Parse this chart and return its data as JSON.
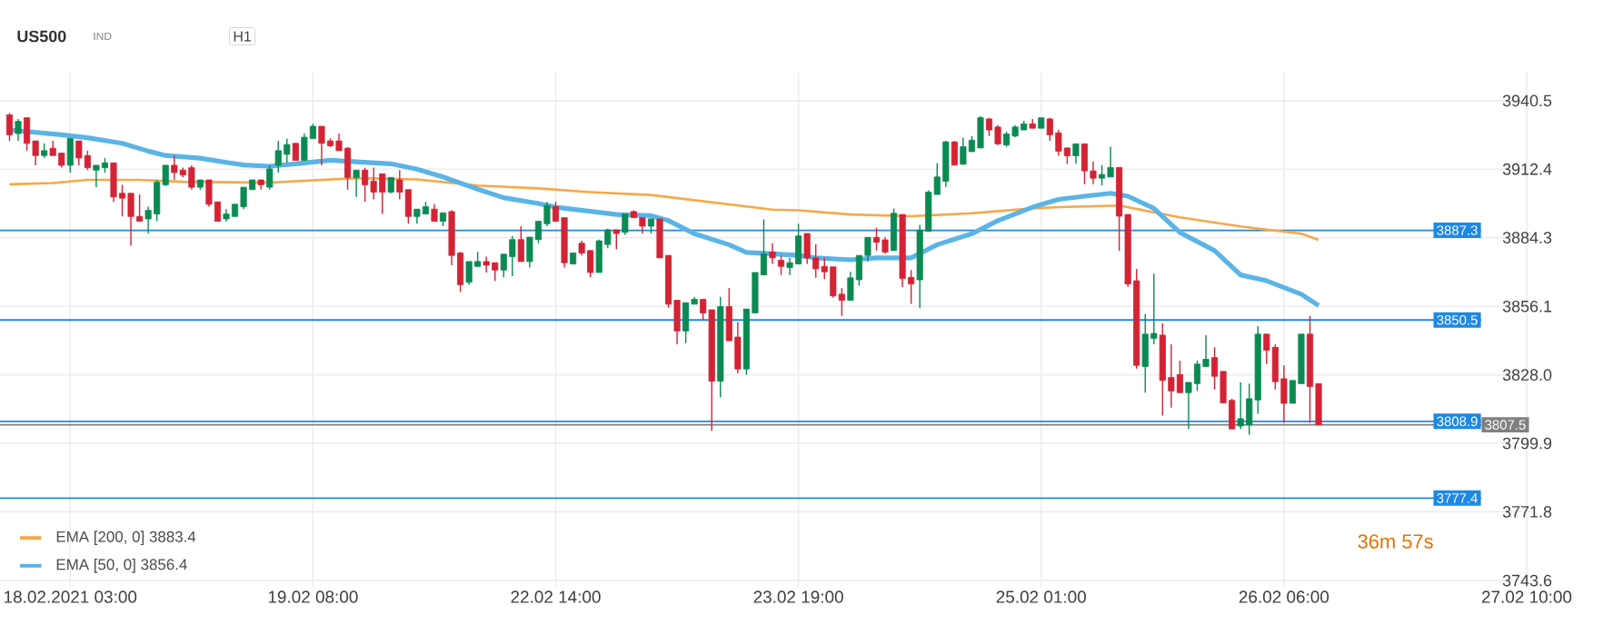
{
  "chart_data": {
    "type": "candlestick",
    "title": "US500",
    "subtitle": "IND",
    "annotations": [
      "H1",
      "36m 57s"
    ],
    "ohlc": [
      [
        3934.7,
        3935.4,
        3924,
        3926.5
      ],
      [
        3927,
        3933,
        3924,
        3932
      ],
      [
        3933.5,
        3933.5,
        3920,
        3923
      ],
      [
        3924,
        3924,
        3914,
        3918
      ],
      [
        3918,
        3923,
        3917,
        3920
      ],
      [
        3921,
        3924,
        3918,
        3918
      ],
      [
        3919,
        3919,
        3913,
        3914
      ],
      [
        3914,
        3925,
        3911,
        3925
      ],
      [
        3924,
        3924,
        3914,
        3917
      ],
      [
        3918,
        3920,
        3912,
        3913
      ],
      [
        3912,
        3914,
        3905,
        3914
      ],
      [
        3913,
        3917,
        3911,
        3915
      ],
      [
        3915,
        3915,
        3899,
        3901
      ],
      [
        3902.5,
        3906,
        3893,
        3900.5
      ],
      [
        3902.5,
        3902.5,
        3881,
        3893
      ],
      [
        3893,
        3902,
        3891,
        3891
      ],
      [
        3892,
        3897,
        3886,
        3895.5
      ],
      [
        3894,
        3908,
        3891,
        3907
      ],
      [
        3906,
        3914,
        3905.5,
        3914
      ],
      [
        3914,
        3918,
        3908,
        3911
      ],
      [
        3912,
        3913,
        3909,
        3910
      ],
      [
        3913,
        3914,
        3904,
        3905
      ],
      [
        3905,
        3908,
        3904,
        3908
      ],
      [
        3908,
        3908,
        3897,
        3898
      ],
      [
        3899,
        3899,
        3891,
        3891
      ],
      [
        3892,
        3896,
        3891,
        3894
      ],
      [
        3893,
        3898,
        3893,
        3898
      ],
      [
        3897,
        3905,
        3896,
        3905
      ],
      [
        3904,
        3908,
        3904,
        3908
      ],
      [
        3908,
        3908,
        3904,
        3906
      ],
      [
        3905,
        3914,
        3904,
        3912.5
      ],
      [
        3914,
        3924,
        3911,
        3920
      ],
      [
        3918.5,
        3925,
        3915,
        3922.5
      ],
      [
        3923,
        3923,
        3916,
        3916
      ],
      [
        3916,
        3927,
        3916,
        3925.5
      ],
      [
        3925,
        3931,
        3925,
        3930
      ],
      [
        3930,
        3930,
        3914,
        3923
      ],
      [
        3924,
        3925,
        3921.5,
        3922
      ],
      [
        3924,
        3927,
        3920,
        3920
      ],
      [
        3921,
        3921.5,
        3904,
        3909
      ],
      [
        3909,
        3912,
        3901,
        3912
      ],
      [
        3912,
        3913,
        3899,
        3906
      ],
      [
        3907.5,
        3913,
        3900,
        3903
      ],
      [
        3910.5,
        3910.5,
        3894,
        3903
      ],
      [
        3903,
        3909,
        3902.5,
        3909
      ],
      [
        3908,
        3912,
        3900,
        3903
      ],
      [
        3904,
        3904,
        3890,
        3893
      ],
      [
        3893,
        3896,
        3890,
        3896
      ],
      [
        3894,
        3899,
        3894,
        3897
      ],
      [
        3896,
        3898,
        3891,
        3891
      ],
      [
        3891,
        3894.5,
        3889,
        3894.5
      ],
      [
        3895,
        3895.5,
        3873,
        3877
      ],
      [
        3878,
        3878.5,
        3862,
        3865
      ],
      [
        3866,
        3874.5,
        3865,
        3874.5
      ],
      [
        3872.5,
        3878.5,
        3872.5,
        3874.5
      ],
      [
        3874.5,
        3876.5,
        3870,
        3873
      ],
      [
        3874,
        3874,
        3866.5,
        3871
      ],
      [
        3871,
        3877.5,
        3868,
        3877.5
      ],
      [
        3876.5,
        3885,
        3868.5,
        3883.5
      ],
      [
        3883.5,
        3889,
        3874.5,
        3874.5
      ],
      [
        3874.5,
        3884.5,
        3872,
        3884.5
      ],
      [
        3883.5,
        3891,
        3882,
        3891
      ],
      [
        3890,
        3899,
        3889,
        3897.5
      ],
      [
        3897,
        3899,
        3891,
        3891
      ],
      [
        3892.5,
        3892.5,
        3872,
        3874
      ],
      [
        3873.5,
        3878,
        3873.5,
        3878
      ],
      [
        3882,
        3883,
        3877,
        3878
      ],
      [
        3879,
        3879,
        3868,
        3870
      ],
      [
        3870,
        3883.5,
        3870,
        3883
      ],
      [
        3881.5,
        3888,
        3880,
        3887.5
      ],
      [
        3887.5,
        3887.5,
        3879.5,
        3886
      ],
      [
        3886.5,
        3894,
        3885.5,
        3894
      ],
      [
        3895,
        3895.5,
        3892.5,
        3892.5
      ],
      [
        3892.5,
        3892.5,
        3886,
        3889
      ],
      [
        3889,
        3892,
        3886,
        3892
      ],
      [
        3892,
        3892,
        3876,
        3876
      ],
      [
        3877,
        3877,
        3855.5,
        3857
      ],
      [
        3858.6,
        3858.6,
        3840.5,
        3846
      ],
      [
        3846,
        3857.6,
        3841,
        3857.6
      ],
      [
        3857,
        3860,
        3857,
        3859
      ],
      [
        3859,
        3859,
        3850.5,
        3853.4
      ],
      [
        3854.7,
        3854.7,
        3805,
        3825.4
      ],
      [
        3825.4,
        3860,
        3818.7,
        3856
      ],
      [
        3856,
        3863.6,
        3842,
        3842
      ],
      [
        3843.5,
        3849.7,
        3828.6,
        3830.4
      ],
      [
        3830.4,
        3855,
        3828,
        3855
      ],
      [
        3853.4,
        3870,
        3853.4,
        3870
      ],
      [
        3869,
        3891.8,
        3869,
        3877.7
      ],
      [
        3878.4,
        3882,
        3873.5,
        3876
      ],
      [
        3875,
        3877,
        3869,
        3872.5
      ],
      [
        3872,
        3876,
        3869,
        3874
      ],
      [
        3873.5,
        3890,
        3873.5,
        3885
      ],
      [
        3886,
        3886,
        3873.5,
        3876
      ],
      [
        3876,
        3881.5,
        3867.8,
        3871.5
      ],
      [
        3872.5,
        3876,
        3867.3,
        3870.3
      ],
      [
        3872.3,
        3872.3,
        3859.6,
        3860.4
      ],
      [
        3861.1,
        3863.6,
        3852.2,
        3858.6
      ],
      [
        3858.6,
        3870.3,
        3858.6,
        3867.8
      ],
      [
        3867,
        3877,
        3864.6,
        3877
      ],
      [
        3877,
        3884.4,
        3874.5,
        3884.4
      ],
      [
        3884.4,
        3888.4,
        3879,
        3882.4
      ],
      [
        3883.4,
        3884.4,
        3877.7,
        3878.4
      ],
      [
        3879,
        3896.3,
        3879,
        3894.3
      ],
      [
        3893.8,
        3893.8,
        3864,
        3867.5
      ],
      [
        3868,
        3871,
        3857.1,
        3865.3
      ],
      [
        3867,
        3889.6,
        3855.4,
        3887.4
      ],
      [
        3886.9,
        3903.7,
        3886.9,
        3903
      ],
      [
        3902,
        3914.9,
        3902,
        3909.2
      ],
      [
        3907.4,
        3924,
        3905,
        3923.6
      ],
      [
        3923.6,
        3924,
        3914.1,
        3914.1
      ],
      [
        3914.4,
        3925.3,
        3914.4,
        3921.6
      ],
      [
        3919.6,
        3926,
        3919.6,
        3924.3
      ],
      [
        3921.1,
        3934.2,
        3921.1,
        3933.5
      ],
      [
        3933,
        3933.5,
        3926,
        3928.5
      ],
      [
        3929.7,
        3930.5,
        3922.3,
        3922.8
      ],
      [
        3922.3,
        3927.8,
        3921.6,
        3926.8
      ],
      [
        3926,
        3930.5,
        3925.5,
        3929.7
      ],
      [
        3928.5,
        3932.2,
        3928.5,
        3931
      ],
      [
        3931,
        3933,
        3929.2,
        3929.2
      ],
      [
        3929.2,
        3933.5,
        3929.2,
        3933.5
      ],
      [
        3933,
        3933.5,
        3924,
        3926.5
      ],
      [
        3927.3,
        3928.5,
        3918,
        3919.8
      ],
      [
        3921.1,
        3921.1,
        3914.6,
        3917.9
      ],
      [
        3917.9,
        3922.8,
        3914.6,
        3922.8
      ],
      [
        3922.8,
        3922.8,
        3906.2,
        3911.7
      ],
      [
        3911.7,
        3915.6,
        3906.2,
        3908.7
      ],
      [
        3908.7,
        3914.1,
        3905.7,
        3910.2
      ],
      [
        3909.2,
        3921.6,
        3909.2,
        3913.1
      ],
      [
        3913.1,
        3913.1,
        3878.9,
        3893.1
      ],
      [
        3893.8,
        3893.8,
        3864.1,
        3865.3
      ],
      [
        3866.6,
        3871.5,
        3830.6,
        3831.9
      ],
      [
        3831.4,
        3852.9,
        3820.7,
        3844.7
      ],
      [
        3843,
        3869.5,
        3840.5,
        3845
      ],
      [
        3844.3,
        3849.2,
        3811.3,
        3825.7
      ],
      [
        3826.9,
        3840.5,
        3814.5,
        3821.4
      ],
      [
        3828.1,
        3833.8,
        3820.7,
        3820.7
      ],
      [
        3820.7,
        3824.9,
        3805.8,
        3824.9
      ],
      [
        3824.4,
        3833.8,
        3821.4,
        3832.4
      ],
      [
        3831.4,
        3844.3,
        3831.4,
        3834.4
      ],
      [
        3835.1,
        3839.3,
        3822,
        3827.4
      ],
      [
        3829.4,
        3829.4,
        3816.5,
        3816.5
      ],
      [
        3817.5,
        3818.2,
        3805.8,
        3805.8
      ],
      [
        3807,
        3824.9,
        3805.8,
        3810
      ],
      [
        3807.5,
        3824.4,
        3803.4,
        3818.2
      ],
      [
        3817.7,
        3848,
        3812,
        3844.7
      ],
      [
        3844.7,
        3844.7,
        3832.4,
        3838.1
      ],
      [
        3839.3,
        3840.5,
        3822,
        3825.2
      ],
      [
        3826.4,
        3831.9,
        3808.3,
        3816.3
      ],
      [
        3816.3,
        3825.7,
        3816.3,
        3825.7
      ],
      [
        3824.4,
        3844.7,
        3824.4,
        3844.7
      ],
      [
        3844.7,
        3852.2,
        3808.3,
        3823.2
      ],
      [
        3824.4,
        3824.4,
        3807.5,
        3807.5
      ],
      null,
      null,
      null,
      null,
      null,
      null,
      null,
      null,
      null,
      null,
      null,
      null,
      null,
      null,
      null,
      null,
      null,
      null,
      null,
      null,
      null,
      null,
      null,
      null
    ],
    "series": [
      {
        "name": "EMA [200, 0] 3883.4",
        "type": "line",
        "color": "#f7a849",
        "values": [
          3906.2,
          null,
          null,
          null,
          null,
          3906.7,
          null,
          null,
          null,
          3908,
          null,
          null,
          null,
          null,
          null,
          3908,
          null,
          null,
          null,
          null,
          3907.2,
          null,
          null,
          null,
          null,
          null,
          null,
          null,
          null,
          null,
          3906.9,
          null,
          null,
          null,
          null,
          null,
          null,
          null,
          null,
          null,
          3908.7,
          null,
          null,
          null,
          null,
          null,
          null,
          3908.2,
          null,
          null,
          null,
          null,
          null,
          null,
          3905.7,
          null,
          null,
          null,
          null,
          null,
          null,
          3904.5,
          null,
          null,
          null,
          null,
          null,
          3903,
          null,
          null,
          null,
          null,
          null,
          null,
          3901.8,
          null,
          null,
          null,
          null,
          null,
          null,
          3898.8,
          null,
          null,
          null,
          null,
          null,
          null,
          3895.8,
          null,
          null,
          3895.5,
          null,
          null,
          null,
          null,
          null,
          3893.8,
          null,
          null,
          null,
          null,
          null,
          null,
          3893.1,
          null,
          null,
          null,
          null,
          null,
          null,
          3894.3,
          null,
          null,
          null,
          null,
          null,
          null,
          3896.3,
          null,
          null,
          3896.8,
          null,
          null,
          null,
          null,
          null,
          null,
          3897.5,
          null,
          null,
          null,
          null,
          null,
          null,
          3892.6,
          null,
          null,
          null,
          null,
          null,
          null,
          3888.9,
          null,
          null,
          null,
          null,
          null,
          null,
          3885.9,
          null,
          3883.4,
          null,
          null,
          null,
          null,
          null,
          null,
          null,
          null,
          null,
          null,
          null,
          null,
          null,
          null,
          null,
          null,
          null,
          null,
          null,
          null,
          null,
          null,
          null,
          null
        ]
      },
      {
        "name": "EMA [50, 0] 3856.4",
        "type": "line",
        "color": "#5ab4e6",
        "values": [
          3928.5,
          null,
          null,
          null,
          null,
          null,
          3926.5,
          null,
          null,
          3925.3,
          null,
          null,
          null,
          3923,
          null,
          null,
          3919.8,
          null,
          3918,
          null,
          null,
          null,
          3916.9,
          null,
          null,
          null,
          null,
          3914.1,
          null,
          null,
          3913.6,
          null,
          null,
          3914.6,
          null,
          null,
          null,
          3916.1,
          null,
          null,
          3915.4,
          null,
          null,
          null,
          3914.6,
          null,
          null,
          3912.4,
          null,
          null,
          3909.2,
          null,
          null,
          null,
          3904.2,
          null,
          null,
          3900.7,
          null,
          null,
          null,
          3898.3,
          null,
          3896.8,
          null,
          null,
          null,
          3895.1,
          null,
          null,
          3893.8,
          null,
          null,
          null,
          3893.3,
          null,
          3891.3,
          null,
          null,
          3885.9,
          null,
          null,
          null,
          3881.4,
          null,
          3878.2,
          null,
          null,
          3877.7,
          null,
          null,
          3877,
          null,
          3876,
          null,
          null,
          null,
          3875.2,
          null,
          null,
          3876,
          null,
          null,
          null,
          3876,
          null,
          null,
          3881.4,
          null,
          null,
          null,
          3885.9,
          null,
          null,
          3891.3,
          null,
          null,
          null,
          3896.8,
          null,
          null,
          3900,
          null,
          null,
          3901.3,
          null,
          null,
          3902.5,
          null,
          3901.3,
          null,
          null,
          3896.3,
          null,
          null,
          3886.4,
          null,
          null,
          null,
          3879,
          null,
          null,
          3869,
          null,
          null,
          3866.6,
          null,
          null,
          null,
          3861.1,
          null,
          3856.4,
          null,
          null,
          null,
          null,
          null,
          null,
          null,
          null,
          null,
          null,
          null,
          null,
          null,
          null,
          null,
          null,
          null,
          null,
          null,
          null,
          null,
          null,
          null,
          null
        ]
      }
    ],
    "categories": [
      null,
      null,
      null,
      null,
      null,
      null,
      null,
      "18.02.2021  03:00",
      null,
      null,
      null,
      null,
      null,
      null,
      null,
      null,
      null,
      null,
      null,
      null,
      null,
      null,
      null,
      null,
      null,
      null,
      null,
      null,
      null,
      null,
      null,
      null,
      null,
      null,
      null,
      "19.02  08:00",
      null,
      null,
      null,
      null,
      null,
      null,
      null,
      null,
      null,
      null,
      null,
      null,
      null,
      null,
      null,
      null,
      null,
      null,
      null,
      null,
      null,
      null,
      null,
      null,
      null,
      null,
      null,
      "22.02  14:00",
      null,
      null,
      null,
      null,
      null,
      null,
      null,
      null,
      null,
      null,
      null,
      null,
      null,
      null,
      null,
      null,
      null,
      null,
      null,
      null,
      null,
      null,
      null,
      null,
      null,
      null,
      null,
      "23.02  19:00",
      null,
      null,
      null,
      null,
      null,
      null,
      null,
      null,
      null,
      null,
      null,
      null,
      null,
      null,
      null,
      null,
      null,
      null,
      null,
      null,
      null,
      null,
      null,
      null,
      null,
      null,
      null,
      "25.02  01:00",
      null,
      null,
      null,
      null,
      null,
      null,
      null,
      null,
      null,
      null,
      null,
      null,
      null,
      null,
      null,
      null,
      null,
      null,
      null,
      null,
      null,
      null,
      null,
      null,
      null,
      null,
      null,
      "26.02  06:00",
      null,
      null,
      null,
      null,
      null,
      null,
      null,
      null,
      null,
      null,
      null,
      null,
      null,
      null,
      null,
      null,
      null,
      null,
      null,
      null,
      null,
      null,
      null,
      null,
      null,
      null,
      null,
      "27.02  10:00"
    ],
    "ylim": [
      3741,
      3952
    ],
    "yticks": [
      3743.6,
      3771.8,
      3799.9,
      {
        "value": 3828.0,
        "label": "3828.0"
      },
      3856.1,
      3884.3,
      3912.4,
      3940.5
    ],
    "ref_lines": [
      {
        "axis": "y",
        "value": 3887.3,
        "label": "3887.3",
        "color": "#1e88e5"
      },
      {
        "axis": "y",
        "value": 3850.5,
        "label": "3850.5",
        "color": "#1e88e5"
      },
      {
        "axis": "y",
        "value": 3808.9,
        "label": "3808.9",
        "color": "#1e88e5"
      },
      {
        "axis": "y",
        "value": 3777.4,
        "label": "3777.4",
        "color": "#1e88e5"
      },
      {
        "axis": "y",
        "value": 3807.5,
        "label": "3807.5",
        "color": "#808080"
      }
    ],
    "grid": true,
    "legend": "bottom left"
  }
}
